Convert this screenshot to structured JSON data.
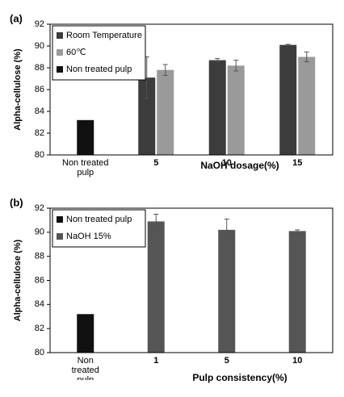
{
  "chart_data": [
    {
      "type": "bar",
      "panel_label": "(a)",
      "y_label": "Alpha-cellulose (%)",
      "x_label": "NaOH dosage(%)",
      "categories": [
        "Non treated pulp",
        "5",
        "10",
        "15"
      ],
      "series": [
        {
          "name": "Room Temperature",
          "color": "#3c3c3c",
          "values": [
            null,
            87.1,
            88.7,
            90.1
          ],
          "errors": [
            null,
            1.9,
            0.15,
            0.05
          ]
        },
        {
          "name": "60℃",
          "color": "#9a9a9a",
          "values": [
            null,
            87.8,
            88.2,
            89.0
          ],
          "errors": [
            null,
            0.5,
            0.5,
            0.45
          ]
        },
        {
          "name": "Non treated pulp",
          "color": "#111111",
          "values": [
            83.2,
            null,
            null,
            null
          ],
          "errors": [
            null,
            null,
            null,
            null
          ]
        }
      ],
      "ylim": [
        80,
        92
      ],
      "yticks": [
        80,
        82,
        84,
        86,
        88,
        90,
        92
      ],
      "legend": "upper left"
    },
    {
      "type": "bar",
      "panel_label": "(b)",
      "y_label": "Alpha-cellulose (%)",
      "x_label": "Pulp consistency(%)",
      "categories": [
        "Non treated pulp",
        "1",
        "5",
        "10"
      ],
      "series": [
        {
          "name": "Non treated pulp",
          "color": "#111111",
          "values": [
            83.2,
            null,
            null,
            null
          ],
          "errors": [
            null,
            null,
            null,
            null
          ]
        },
        {
          "name": "NaOH 15%",
          "color": "#555555",
          "values": [
            null,
            90.9,
            90.2,
            90.1
          ],
          "errors": [
            null,
            0.6,
            0.9,
            0.1
          ]
        }
      ],
      "ylim": [
        80,
        92
      ],
      "yticks": [
        80,
        82,
        84,
        86,
        88,
        90,
        92
      ],
      "legend": "upper left"
    }
  ]
}
